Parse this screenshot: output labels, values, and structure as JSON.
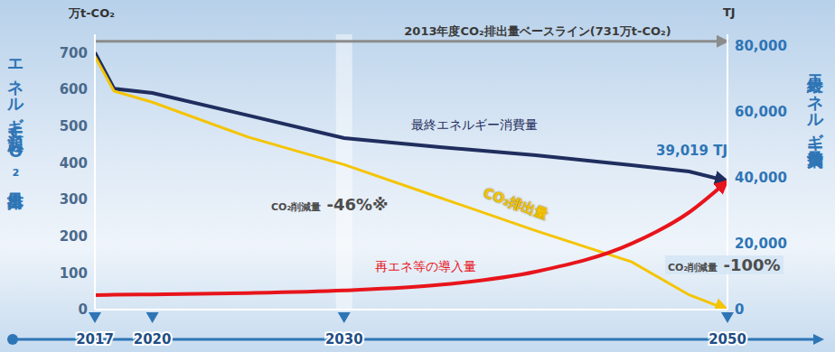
{
  "chart_data": {
    "type": "line",
    "y_label": "エネルギー起源CO₂排出量",
    "y_unit": "万t-CO₂",
    "y2_label": "最終エネルギー消費量",
    "y2_unit": "TJ",
    "x": [
      2017,
      2018,
      2020,
      2025,
      2030,
      2035,
      2040,
      2045,
      2048,
      2050
    ],
    "xlim": [
      2017,
      2050
    ],
    "xticks": [
      2017,
      2020,
      2030,
      2050
    ],
    "ylim": [
      0,
      750
    ],
    "yticks": [
      0,
      100,
      200,
      300,
      400,
      500,
      600,
      700
    ],
    "y2lim": [
      0,
      83500
    ],
    "y2ticks": [
      0,
      {
        "value": 20000,
        "label": "20,000"
      },
      {
        "value": 40000,
        "label": "40,000"
      },
      {
        "value": 60000,
        "label": "60,000"
      },
      {
        "value": 80000,
        "label": "80,000"
      }
    ],
    "grid": false,
    "baseline": {
      "value": 731,
      "label": "2013年度CO₂排出量ベースライン(731万t-CO₂)"
    },
    "annotations": [
      "CO₂削減量 -46%※",
      "CO₂削減量 -100%"
    ],
    "series": [
      {
        "name": "最終エネルギー消費量",
        "color": "#1f2e5e",
        "axis": "y2",
        "marker": "arrow",
        "line_style": "solid",
        "values": [
          78000,
          67000,
          65700,
          58900,
          52000,
          49300,
          46800,
          43800,
          41900,
          39019
        ],
        "value_labels": [
          null,
          null,
          null,
          null,
          null,
          null,
          null,
          null,
          null,
          "39,019 TJ"
        ]
      },
      {
        "name": "CO₂排出量",
        "color": "#f5c400",
        "marker": "arrow",
        "line_style": "solid",
        "values": [
          690,
          595,
          565,
          470,
          395,
          305,
          215,
          130,
          40,
          0
        ]
      },
      {
        "name": "再エネ等の導入量",
        "color": "#e8141b",
        "axis": "y2",
        "marker": "arrow",
        "line_style": "smooth",
        "values": [
          4400,
          4500,
          4600,
          5000,
          5800,
          7500,
          11500,
          20000,
          29500,
          39000
        ]
      }
    ]
  }
}
